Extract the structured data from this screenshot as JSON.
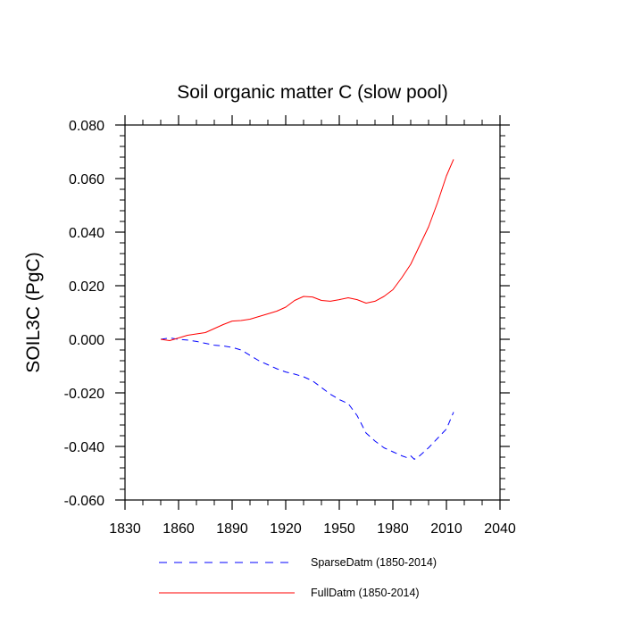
{
  "chart_data": {
    "type": "line",
    "title": "Soil organic matter C (slow pool)",
    "xlabel": "",
    "ylabel": "SOIL3C  (PgC)",
    "xlim": [
      1830,
      2040
    ],
    "ylim": [
      -0.06,
      0.08
    ],
    "xticks": [
      1830,
      1860,
      1890,
      1920,
      1950,
      1980,
      2010,
      2040
    ],
    "xtick_labels": [
      "1830",
      "1860",
      "1890",
      "1920",
      "1950",
      "1980",
      "2010",
      "2040"
    ],
    "yticks": [
      -0.06,
      -0.04,
      -0.02,
      0.0,
      0.02,
      0.04,
      0.06,
      0.08
    ],
    "ytick_labels": [
      "-0.060",
      "-0.040",
      "-0.020",
      "0.000",
      "0.020",
      "0.040",
      "0.060",
      "0.080"
    ],
    "grid": false,
    "legend_position": "bottom",
    "series": [
      {
        "name": "SparseDatm (1850-2014)",
        "color": "#0000ff",
        "style": "dashed",
        "x": [
          1850,
          1855,
          1860,
          1865,
          1870,
          1875,
          1880,
          1885,
          1890,
          1895,
          1900,
          1905,
          1910,
          1915,
          1920,
          1925,
          1930,
          1935,
          1940,
          1945,
          1950,
          1955,
          1960,
          1965,
          1970,
          1975,
          1980,
          1985,
          1988,
          1990,
          1992,
          1995,
          2000,
          2005,
          2010,
          2014
        ],
        "y": [
          0.0,
          0.0005,
          0.0,
          -0.0003,
          -0.0008,
          -0.0015,
          -0.0022,
          -0.0025,
          -0.003,
          -0.004,
          -0.006,
          -0.008,
          -0.0095,
          -0.011,
          -0.0122,
          -0.013,
          -0.014,
          -0.0155,
          -0.018,
          -0.0205,
          -0.0225,
          -0.024,
          -0.0285,
          -0.035,
          -0.038,
          -0.0405,
          -0.042,
          -0.0435,
          -0.0442,
          -0.0435,
          -0.0448,
          -0.0435,
          -0.0405,
          -0.037,
          -0.0335,
          -0.0272
        ]
      },
      {
        "name": "FullDatm (1850-2014)",
        "color": "#ff0000",
        "style": "solid",
        "x": [
          1850,
          1855,
          1860,
          1865,
          1870,
          1875,
          1880,
          1885,
          1890,
          1895,
          1900,
          1905,
          1910,
          1915,
          1920,
          1925,
          1930,
          1935,
          1940,
          1945,
          1950,
          1955,
          1960,
          1965,
          1970,
          1975,
          1980,
          1985,
          1990,
          1995,
          2000,
          2005,
          2010,
          2014
        ],
        "y": [
          0.0,
          -0.0005,
          0.0005,
          0.0015,
          0.002,
          0.0025,
          0.004,
          0.0055,
          0.0068,
          0.007,
          0.0075,
          0.0085,
          0.0095,
          0.0105,
          0.012,
          0.0145,
          0.016,
          0.0158,
          0.0145,
          0.0142,
          0.0148,
          0.0155,
          0.0148,
          0.0135,
          0.0142,
          0.016,
          0.0185,
          0.023,
          0.028,
          0.035,
          0.042,
          0.051,
          0.061,
          0.0672
        ]
      }
    ]
  }
}
